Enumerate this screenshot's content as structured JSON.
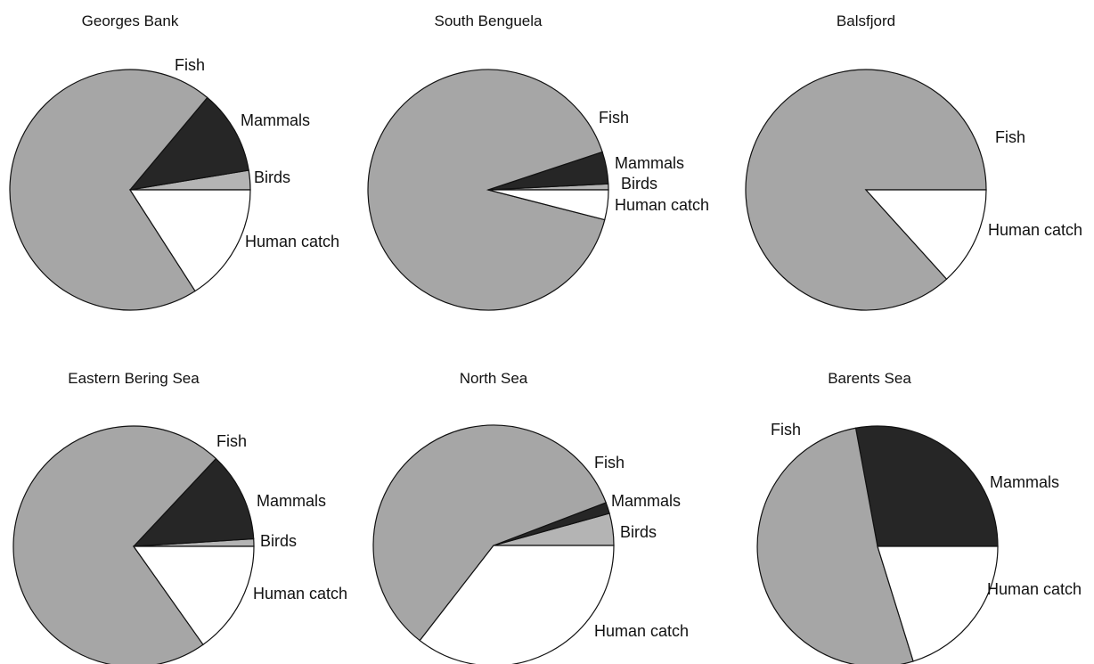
{
  "colors": {
    "Fish": "#a6a6a6",
    "Mammals": "#262626",
    "Birds": "#b4b4b4",
    "Human catch": "#ffffff"
  },
  "chart_data": [
    {
      "type": "pie",
      "title": "Georges Bank",
      "slices": [
        {
          "label": "Fish",
          "value": 70.2
        },
        {
          "label": "Mammals",
          "value": 11.3
        },
        {
          "label": "Birds",
          "value": 2.6
        },
        {
          "label": "Human catch",
          "value": 15.9
        }
      ]
    },
    {
      "type": "pie",
      "title": "South Benguela",
      "slices": [
        {
          "label": "Fish",
          "value": 90.9
        },
        {
          "label": "Mammals",
          "value": 4.3
        },
        {
          "label": "Birds",
          "value": 0.8
        },
        {
          "label": "Human catch",
          "value": 4.0
        }
      ]
    },
    {
      "type": "pie",
      "title": "Balsfjord",
      "slices": [
        {
          "label": "Fish",
          "value": 86.7
        },
        {
          "label": "Human catch",
          "value": 13.3
        }
      ]
    },
    {
      "type": "pie",
      "title": "Eastern Bering Sea",
      "slices": [
        {
          "label": "Fish",
          "value": 71.8
        },
        {
          "label": "Mammals",
          "value": 12.0
        },
        {
          "label": "Birds",
          "value": 1.0
        },
        {
          "label": "Human catch",
          "value": 15.2
        }
      ]
    },
    {
      "type": "pie",
      "title": "North Sea",
      "slices": [
        {
          "label": "Fish",
          "value": 58.7
        },
        {
          "label": "Mammals",
          "value": 1.5
        },
        {
          "label": "Birds",
          "value": 4.3
        },
        {
          "label": "Human catch",
          "value": 35.5
        }
      ]
    },
    {
      "type": "pie",
      "title": "Barents Sea",
      "slices": [
        {
          "label": "Fish",
          "value": 51.9
        },
        {
          "label": "Mammals",
          "value": 27.9
        },
        {
          "label": "Human catch",
          "value": 20.2
        }
      ]
    }
  ]
}
